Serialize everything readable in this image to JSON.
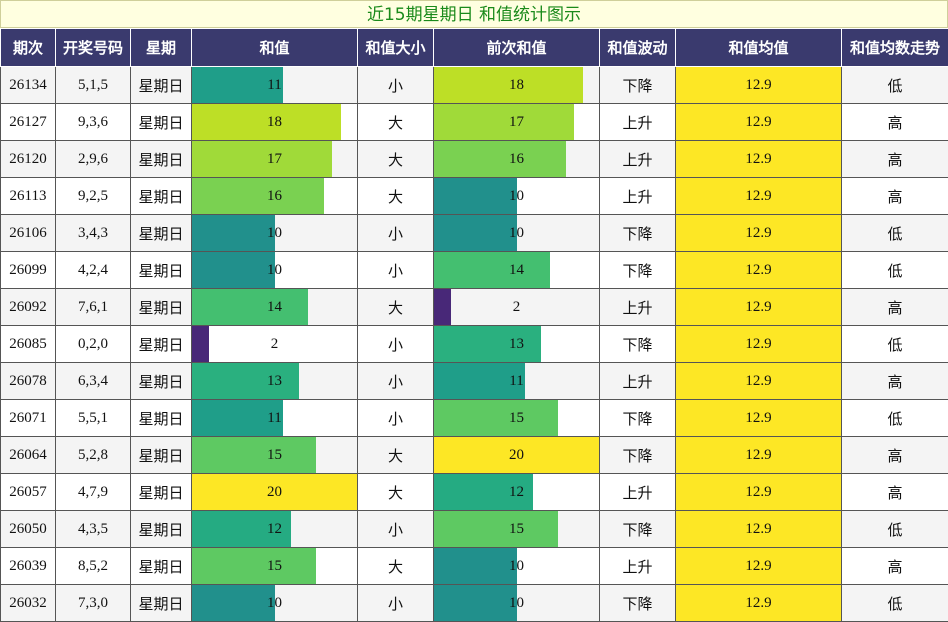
{
  "title": "近15期星期日 和值统计图示",
  "headers": {
    "period": "期次",
    "numbers": "开奖号码",
    "weekday": "星期",
    "sum": "和值",
    "size": "和值大小",
    "prev_sum": "前次和值",
    "trend": "和值波动",
    "mean": "和值均值",
    "mean_trend": "和值均数走势"
  },
  "chart_data": {
    "type": "table",
    "title": "近15期星期日 和值统计图示",
    "bar_max": 20,
    "mean_value": "12.9",
    "colors": {
      "2": "#482878",
      "10": "#21908c",
      "11": "#1f9e89",
      "12": "#25ab82",
      "13": "#2ab07f",
      "14": "#44bf70",
      "15": "#5ec962",
      "16": "#7ad151",
      "17": "#a0da39",
      "18": "#bddf26",
      "20": "#fde725",
      "mean": "#fde725",
      "header": "#3a3a6e",
      "title_text": "#1a8a1a"
    },
    "rows": [
      {
        "period": "26134",
        "numbers": "5,1,5",
        "weekday": "星期日",
        "sum": 11,
        "size": "小",
        "prev_sum": 18,
        "trend": "下降",
        "mean": "12.9",
        "mean_trend": "低"
      },
      {
        "period": "26127",
        "numbers": "9,3,6",
        "weekday": "星期日",
        "sum": 18,
        "size": "大",
        "prev_sum": 17,
        "trend": "上升",
        "mean": "12.9",
        "mean_trend": "高"
      },
      {
        "period": "26120",
        "numbers": "2,9,6",
        "weekday": "星期日",
        "sum": 17,
        "size": "大",
        "prev_sum": 16,
        "trend": "上升",
        "mean": "12.9",
        "mean_trend": "高"
      },
      {
        "period": "26113",
        "numbers": "9,2,5",
        "weekday": "星期日",
        "sum": 16,
        "size": "大",
        "prev_sum": 10,
        "trend": "上升",
        "mean": "12.9",
        "mean_trend": "高"
      },
      {
        "period": "26106",
        "numbers": "3,4,3",
        "weekday": "星期日",
        "sum": 10,
        "size": "小",
        "prev_sum": 10,
        "trend": "下降",
        "mean": "12.9",
        "mean_trend": "低"
      },
      {
        "period": "26099",
        "numbers": "4,2,4",
        "weekday": "星期日",
        "sum": 10,
        "size": "小",
        "prev_sum": 14,
        "trend": "下降",
        "mean": "12.9",
        "mean_trend": "低"
      },
      {
        "period": "26092",
        "numbers": "7,6,1",
        "weekday": "星期日",
        "sum": 14,
        "size": "大",
        "prev_sum": 2,
        "trend": "上升",
        "mean": "12.9",
        "mean_trend": "高"
      },
      {
        "period": "26085",
        "numbers": "0,2,0",
        "weekday": "星期日",
        "sum": 2,
        "size": "小",
        "prev_sum": 13,
        "trend": "下降",
        "mean": "12.9",
        "mean_trend": "低"
      },
      {
        "period": "26078",
        "numbers": "6,3,4",
        "weekday": "星期日",
        "sum": 13,
        "size": "小",
        "prev_sum": 11,
        "trend": "上升",
        "mean": "12.9",
        "mean_trend": "高"
      },
      {
        "period": "26071",
        "numbers": "5,5,1",
        "weekday": "星期日",
        "sum": 11,
        "size": "小",
        "prev_sum": 15,
        "trend": "下降",
        "mean": "12.9",
        "mean_trend": "低"
      },
      {
        "period": "26064",
        "numbers": "5,2,8",
        "weekday": "星期日",
        "sum": 15,
        "size": "大",
        "prev_sum": 20,
        "trend": "下降",
        "mean": "12.9",
        "mean_trend": "高"
      },
      {
        "period": "26057",
        "numbers": "4,7,9",
        "weekday": "星期日",
        "sum": 20,
        "size": "大",
        "prev_sum": 12,
        "trend": "上升",
        "mean": "12.9",
        "mean_trend": "高"
      },
      {
        "period": "26050",
        "numbers": "4,3,5",
        "weekday": "星期日",
        "sum": 12,
        "size": "小",
        "prev_sum": 15,
        "trend": "下降",
        "mean": "12.9",
        "mean_trend": "低"
      },
      {
        "period": "26039",
        "numbers": "8,5,2",
        "weekday": "星期日",
        "sum": 15,
        "size": "大",
        "prev_sum": 10,
        "trend": "上升",
        "mean": "12.9",
        "mean_trend": "高"
      },
      {
        "period": "26032",
        "numbers": "7,3,0",
        "weekday": "星期日",
        "sum": 10,
        "size": "小",
        "prev_sum": 10,
        "trend": "下降",
        "mean": "12.9",
        "mean_trend": "低"
      }
    ]
  }
}
